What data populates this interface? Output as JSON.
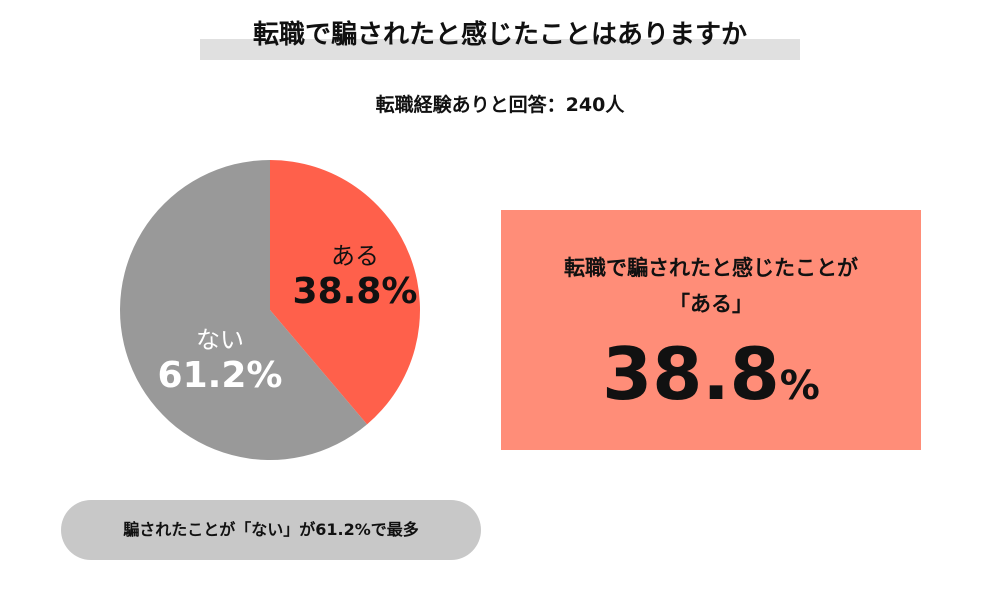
{
  "title": "転職で騙されたと感じたことはありますか",
  "subtitle": "転職経験ありと回答：240人",
  "chart_data": {
    "type": "pie",
    "title": "転職で騙されたと感じたことはありますか",
    "slices": [
      {
        "label": "ある",
        "value": 38.8,
        "display": "38.8%",
        "color": "#ff604b"
      },
      {
        "label": "ない",
        "value": 61.2,
        "display": "61.2%",
        "color": "#999999"
      }
    ]
  },
  "highlight": {
    "line1": "転職で騙されたと感じたことが",
    "line2": "「ある」",
    "value": "38.8",
    "unit": "%"
  },
  "summary": "騙されたことが「ない」が61.2%で最多"
}
